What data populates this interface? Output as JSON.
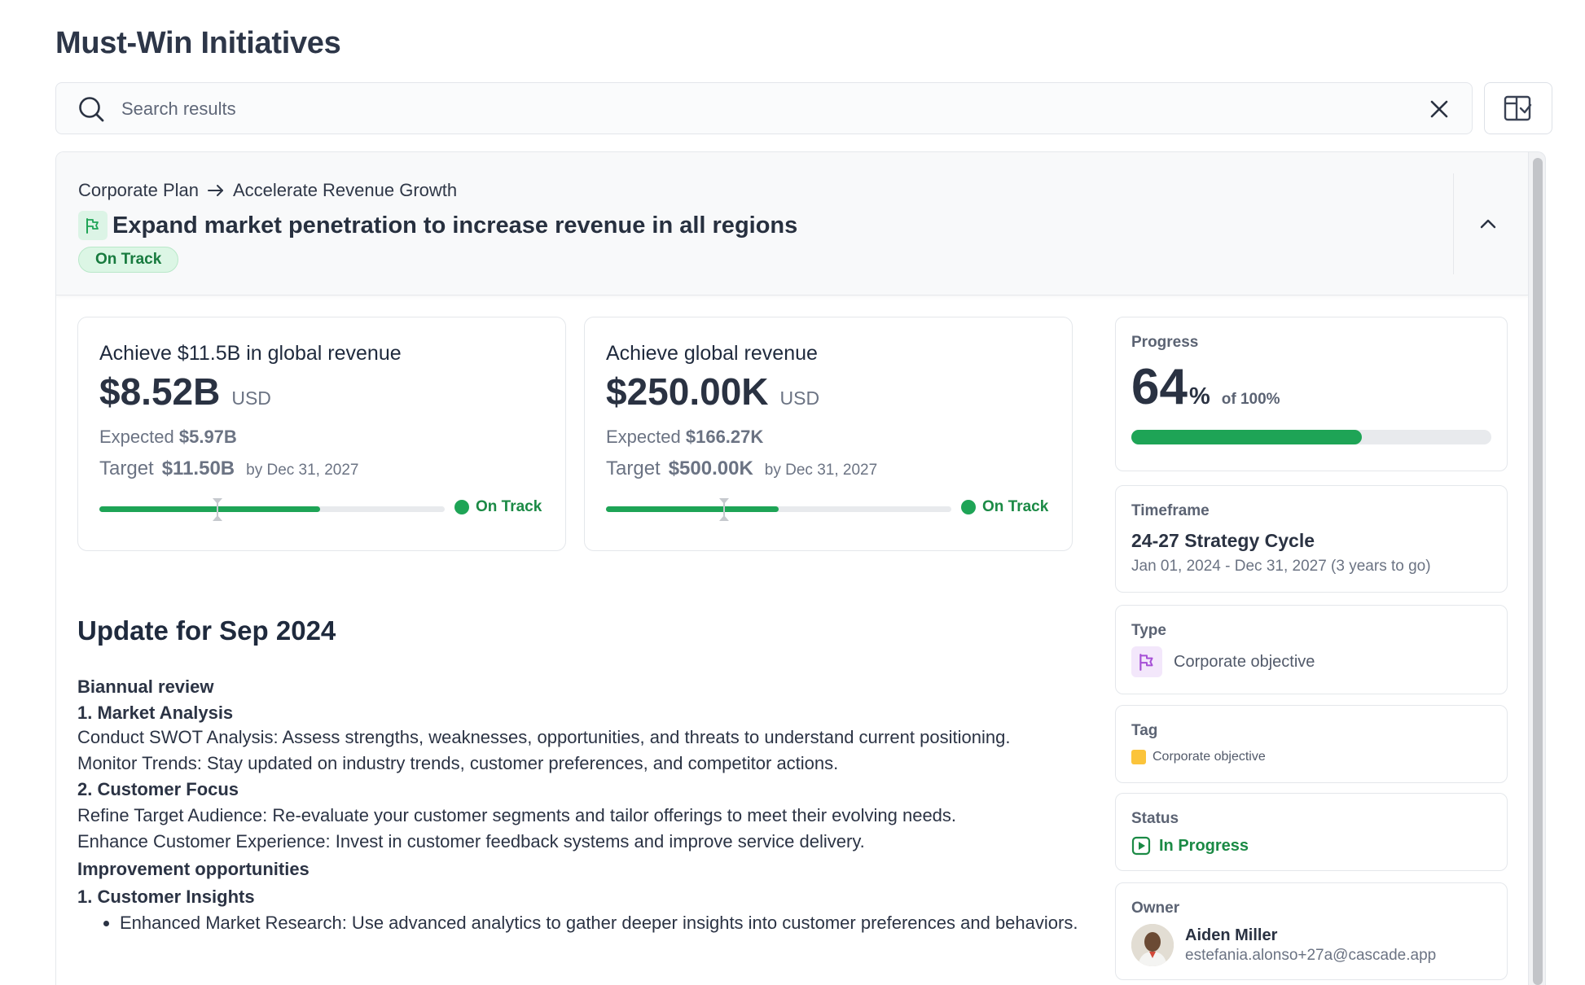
{
  "page": {
    "title": "Must-Win Initiatives"
  },
  "search": {
    "placeholder": "Search results",
    "value": ""
  },
  "objective": {
    "breadcrumb": [
      "Corporate Plan",
      "Accelerate Revenue Growth"
    ],
    "title": "Expand market penetration to increase revenue in all regions",
    "status": "On Track",
    "colors": {
      "on_track": "#1ea456",
      "flag_bg": "#dcf4e6"
    }
  },
  "kpis": [
    {
      "title": "Achieve $11.5B in global revenue",
      "value": "$8.52B",
      "unit": "USD",
      "expected_label": "Expected",
      "expected_value": "$5.97B",
      "target_label": "Target",
      "target_value": "$11.50B",
      "by": "by Dec 31, 2027",
      "progress_fraction": 0.64,
      "expected_fraction": 0.34,
      "status": "On Track"
    },
    {
      "title": "Achieve global revenue",
      "value": "$250.00K",
      "unit": "USD",
      "expected_label": "Expected",
      "expected_value": "$166.27K",
      "target_label": "Target",
      "target_value": "$500.00K",
      "by": "by Dec 31, 2027",
      "progress_fraction": 0.5,
      "expected_fraction": 0.34,
      "status": "On Track"
    }
  ],
  "update": {
    "title": "Update for Sep 2024",
    "sections": [
      {
        "heading": "Biannual review"
      },
      {
        "heading": "1. Market Analysis"
      },
      {
        "text": "Conduct SWOT Analysis: Assess strengths, weaknesses, opportunities, and threats to understand current positioning."
      },
      {
        "text": "Monitor Trends: Stay updated on industry trends, customer preferences, and competitor actions."
      },
      {
        "heading": "2. Customer Focus"
      },
      {
        "text": "Refine Target Audience: Re-evaluate your customer segments and tailor offerings to meet their evolving needs."
      },
      {
        "text": "Enhance Customer Experience: Invest in customer feedback systems and improve service delivery."
      },
      {
        "heading": "Improvement opportunities"
      },
      {
        "heading": "1. Customer Insights"
      }
    ],
    "bullets": [
      "Enhanced Market Research: Use advanced analytics to gather deeper insights into customer preferences and behaviors."
    ]
  },
  "sidebar": {
    "progress": {
      "label": "Progress",
      "value": "64",
      "percent_sign": "%",
      "of": "of 100%",
      "fraction": 0.64
    },
    "timeframe": {
      "label": "Timeframe",
      "name": "24-27 Strategy Cycle",
      "range": "Jan 01, 2024 - Dec 31, 2027 (3 years to go)"
    },
    "type": {
      "label": "Type",
      "value": "Corporate objective",
      "icon": "flag-icon",
      "color": "#a64fd6"
    },
    "tag": {
      "label": "Tag",
      "value": "Corporate objective",
      "color": "#fbc43b"
    },
    "status": {
      "label": "Status",
      "value": "In Progress",
      "icon": "play-square-icon",
      "color": "#1b8a45"
    },
    "owner": {
      "label": "Owner",
      "name": "Aiden Miller",
      "email": "estefania.alonso+27a@cascade.app"
    }
  }
}
